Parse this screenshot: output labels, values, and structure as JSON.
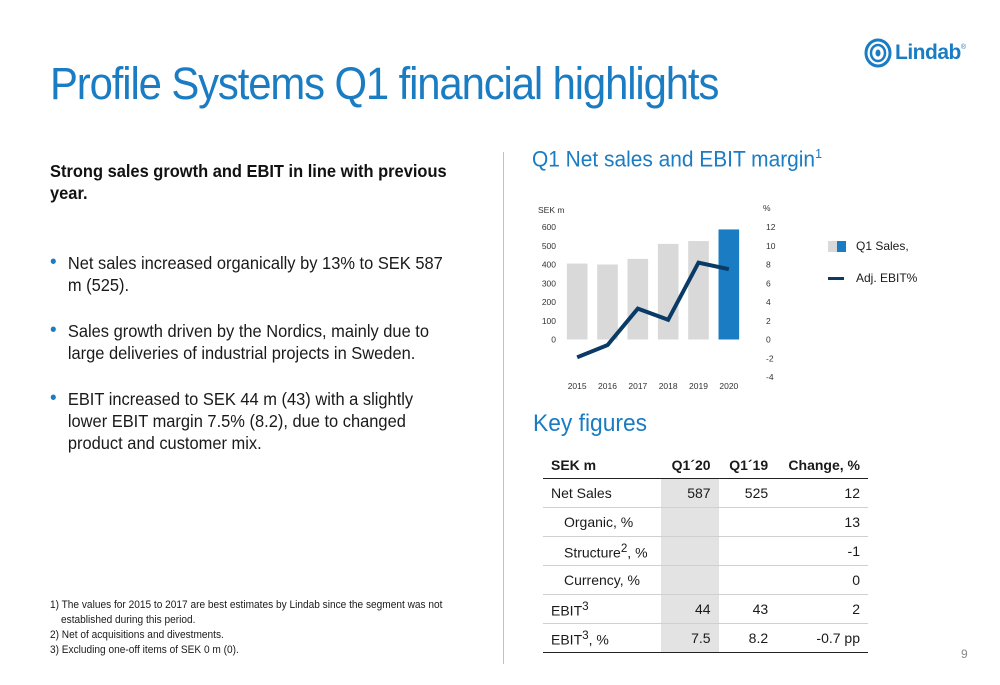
{
  "brand": {
    "name": "Lindab",
    "reg": "®",
    "color": "#1a7cc3",
    "icon": "lindab-ring-logo"
  },
  "title": "Profile Systems Q1 financial highlights",
  "lead": "Strong sales growth and EBIT in line with previous year.",
  "bullets": [
    "Net sales increased organically by 13% to SEK 587 m (525).",
    "Sales growth driven by the Nordics, mainly due to large deliveries of industrial projects in Sweden.",
    "EBIT increased to SEK 44 m (43) with a slightly lower EBIT margin 7.5% (8.2), due to changed product and customer mix."
  ],
  "footnotes": {
    "f1_line1": "1) The values for 2015 to 2017 are best estimates by Lindab since the segment was not",
    "f1_line2": "established during this period.",
    "f2": "2) Net of acquisitions and divestments.",
    "f3": "3) Excluding one-off items of SEK 0 m (0)."
  },
  "chart_title": {
    "text": "Q1 Net sales and EBIT margin",
    "sup": "1"
  },
  "chart_data": {
    "type": "bar",
    "categories": [
      "2015",
      "2016",
      "2017",
      "2018",
      "2019",
      "2020"
    ],
    "series": [
      {
        "name": "Q1 Sales,",
        "type": "bar",
        "axis": "left",
        "values": [
          405,
          400,
          430,
          510,
          525,
          587
        ],
        "color": "#d9d9d9",
        "highlight_color": "#1a7cc3",
        "highlight_index": 5
      },
      {
        "name": "Adj. EBIT%",
        "type": "line",
        "axis": "right",
        "values": [
          -1.9,
          -0.6,
          3.3,
          2.1,
          8.2,
          7.5
        ],
        "color": "#0a3a66"
      }
    ],
    "y_left": {
      "label": "SEK m",
      "ticks": [
        0,
        100,
        200,
        300,
        400,
        500,
        600
      ],
      "range": [
        -200,
        600
      ]
    },
    "y_right": {
      "label": "%",
      "ticks": [
        12,
        10,
        8,
        6,
        4,
        2,
        0,
        -2,
        -4
      ],
      "range": [
        -4,
        12
      ]
    },
    "legend": "right"
  },
  "key_figures": {
    "title": "Key figures",
    "headers": [
      "SEK m",
      "Q1´20",
      "Q1´19",
      "Change, %"
    ],
    "rows": [
      {
        "label": "Net Sales",
        "sup": "",
        "suffix": "",
        "q120": "587",
        "q119": "525",
        "change": "12",
        "sub": false
      },
      {
        "label": "Organic, %",
        "sup": "",
        "suffix": "",
        "q120": "",
        "q119": "",
        "change": "13",
        "sub": true
      },
      {
        "label": "Structure",
        "sup": "2",
        "suffix": ", %",
        "q120": "",
        "q119": "",
        "change": "-1",
        "sub": true
      },
      {
        "label": "Currency, %",
        "sup": "",
        "suffix": "",
        "q120": "",
        "q119": "",
        "change": "0",
        "sub": true
      },
      {
        "label": "EBIT",
        "sup": "3",
        "suffix": "",
        "q120": "44",
        "q119": "43",
        "change": "2",
        "sub": false
      },
      {
        "label": "EBIT",
        "sup": "3",
        "suffix": ", %",
        "q120": "7.5",
        "q119": "8.2",
        "change": "-0.7 pp",
        "sub": false
      }
    ]
  },
  "page_number": "9"
}
